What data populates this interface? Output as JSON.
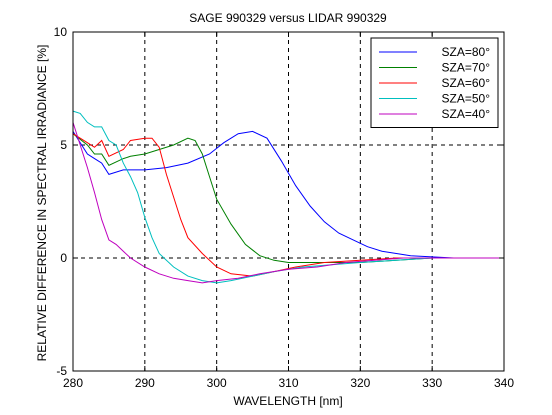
{
  "chart_data": {
    "type": "line",
    "title": "SAGE 990329 versus LIDAR 990329",
    "xlabel": "WAVELENGTH [nm]",
    "ylabel": "RELATIVE DIFFERENCE IN SPECTRAL IRRADIANCE [%]",
    "xlim": [
      280,
      340
    ],
    "ylim": [
      -5,
      10
    ],
    "xticks": [
      280,
      290,
      300,
      310,
      320,
      330,
      340
    ],
    "yticks": [
      -5,
      0,
      5,
      10
    ],
    "grid": "dashed at x=290,300,310,320,330 and y=0,5",
    "legend_position": "top-right",
    "series": [
      {
        "name": "SZA=80°",
        "color": "#0000ff",
        "points": [
          [
            280,
            5.6
          ],
          [
            282,
            4.6
          ],
          [
            283,
            4.4
          ],
          [
            284,
            4.2
          ],
          [
            285,
            3.7
          ],
          [
            287,
            3.9
          ],
          [
            290,
            3.9
          ],
          [
            293,
            4.0
          ],
          [
            296,
            4.2
          ],
          [
            299,
            4.6
          ],
          [
            301,
            5.1
          ],
          [
            303,
            5.5
          ],
          [
            305,
            5.6
          ],
          [
            307,
            5.3
          ],
          [
            309,
            4.3
          ],
          [
            311,
            3.2
          ],
          [
            313,
            2.3
          ],
          [
            315,
            1.6
          ],
          [
            317,
            1.1
          ],
          [
            319,
            0.8
          ],
          [
            321,
            0.5
          ],
          [
            323,
            0.3
          ],
          [
            325,
            0.2
          ],
          [
            327,
            0.1
          ],
          [
            330,
            0.05
          ],
          [
            333,
            0.0
          ],
          [
            336,
            0.0
          ],
          [
            340,
            0.0
          ]
        ]
      },
      {
        "name": "SZA=70°",
        "color": "#008000",
        "points": [
          [
            280,
            5.5
          ],
          [
            282,
            5.0
          ],
          [
            283,
            4.6
          ],
          [
            284,
            4.6
          ],
          [
            285,
            4.1
          ],
          [
            287,
            4.4
          ],
          [
            288,
            4.5
          ],
          [
            290,
            4.6
          ],
          [
            292,
            4.8
          ],
          [
            294,
            5.0
          ],
          [
            296,
            5.3
          ],
          [
            297,
            5.2
          ],
          [
            298,
            4.6
          ],
          [
            299,
            3.6
          ],
          [
            300,
            2.6
          ],
          [
            302,
            1.5
          ],
          [
            304,
            0.6
          ],
          [
            306,
            0.1
          ],
          [
            308,
            -0.1
          ],
          [
            310,
            -0.2
          ],
          [
            313,
            -0.2
          ],
          [
            316,
            -0.2
          ],
          [
            320,
            -0.2
          ],
          [
            325,
            -0.1
          ],
          [
            330,
            0.0
          ],
          [
            340,
            0.0
          ]
        ]
      },
      {
        "name": "SZA=60°",
        "color": "#ff0000",
        "points": [
          [
            280,
            5.5
          ],
          [
            282,
            5.1
          ],
          [
            283,
            4.9
          ],
          [
            284,
            5.2
          ],
          [
            285,
            4.5
          ],
          [
            287,
            4.8
          ],
          [
            288,
            5.2
          ],
          [
            290,
            5.3
          ],
          [
            291,
            5.3
          ],
          [
            292,
            4.9
          ],
          [
            293,
            3.7
          ],
          [
            294,
            2.7
          ],
          [
            295,
            1.7
          ],
          [
            296,
            0.9
          ],
          [
            298,
            0.2
          ],
          [
            300,
            -0.4
          ],
          [
            302,
            -0.7
          ],
          [
            305,
            -0.8
          ],
          [
            308,
            -0.6
          ],
          [
            311,
            -0.4
          ],
          [
            315,
            -0.2
          ],
          [
            320,
            -0.1
          ],
          [
            325,
            0.0
          ],
          [
            330,
            0.0
          ],
          [
            340,
            0.0
          ]
        ]
      },
      {
        "name": "SZA=50°",
        "color": "#00bfbf",
        "points": [
          [
            280,
            6.5
          ],
          [
            281,
            6.4
          ],
          [
            282,
            6.0
          ],
          [
            283,
            5.8
          ],
          [
            284,
            5.8
          ],
          [
            285,
            5.2
          ],
          [
            286,
            5.0
          ],
          [
            287,
            4.2
          ],
          [
            288,
            3.6
          ],
          [
            289,
            2.9
          ],
          [
            290,
            1.8
          ],
          [
            291,
            0.9
          ],
          [
            292,
            0.2
          ],
          [
            294,
            -0.4
          ],
          [
            296,
            -0.8
          ],
          [
            298,
            -1.0
          ],
          [
            300,
            -1.1
          ],
          [
            302,
            -1.0
          ],
          [
            305,
            -0.8
          ],
          [
            308,
            -0.6
          ],
          [
            312,
            -0.4
          ],
          [
            316,
            -0.3
          ],
          [
            320,
            -0.2
          ],
          [
            325,
            -0.1
          ],
          [
            330,
            0.0
          ],
          [
            340,
            0.0
          ]
        ]
      },
      {
        "name": "SZA=40°",
        "color": "#bf00bf",
        "points": [
          [
            280,
            6.0
          ],
          [
            281,
            5.0
          ],
          [
            282,
            4.0
          ],
          [
            283,
            2.9
          ],
          [
            284,
            1.7
          ],
          [
            285,
            0.8
          ],
          [
            286,
            0.6
          ],
          [
            287,
            0.3
          ],
          [
            288,
            0.0
          ],
          [
            290,
            -0.4
          ],
          [
            292,
            -0.7
          ],
          [
            294,
            -0.9
          ],
          [
            296,
            -1.0
          ],
          [
            298,
            -1.1
          ],
          [
            300,
            -1.0
          ],
          [
            303,
            -0.9
          ],
          [
            306,
            -0.7
          ],
          [
            310,
            -0.5
          ],
          [
            314,
            -0.4
          ],
          [
            318,
            -0.2
          ],
          [
            322,
            -0.1
          ],
          [
            326,
            0.0
          ],
          [
            330,
            0.0
          ],
          [
            340,
            0.0
          ]
        ]
      }
    ]
  }
}
